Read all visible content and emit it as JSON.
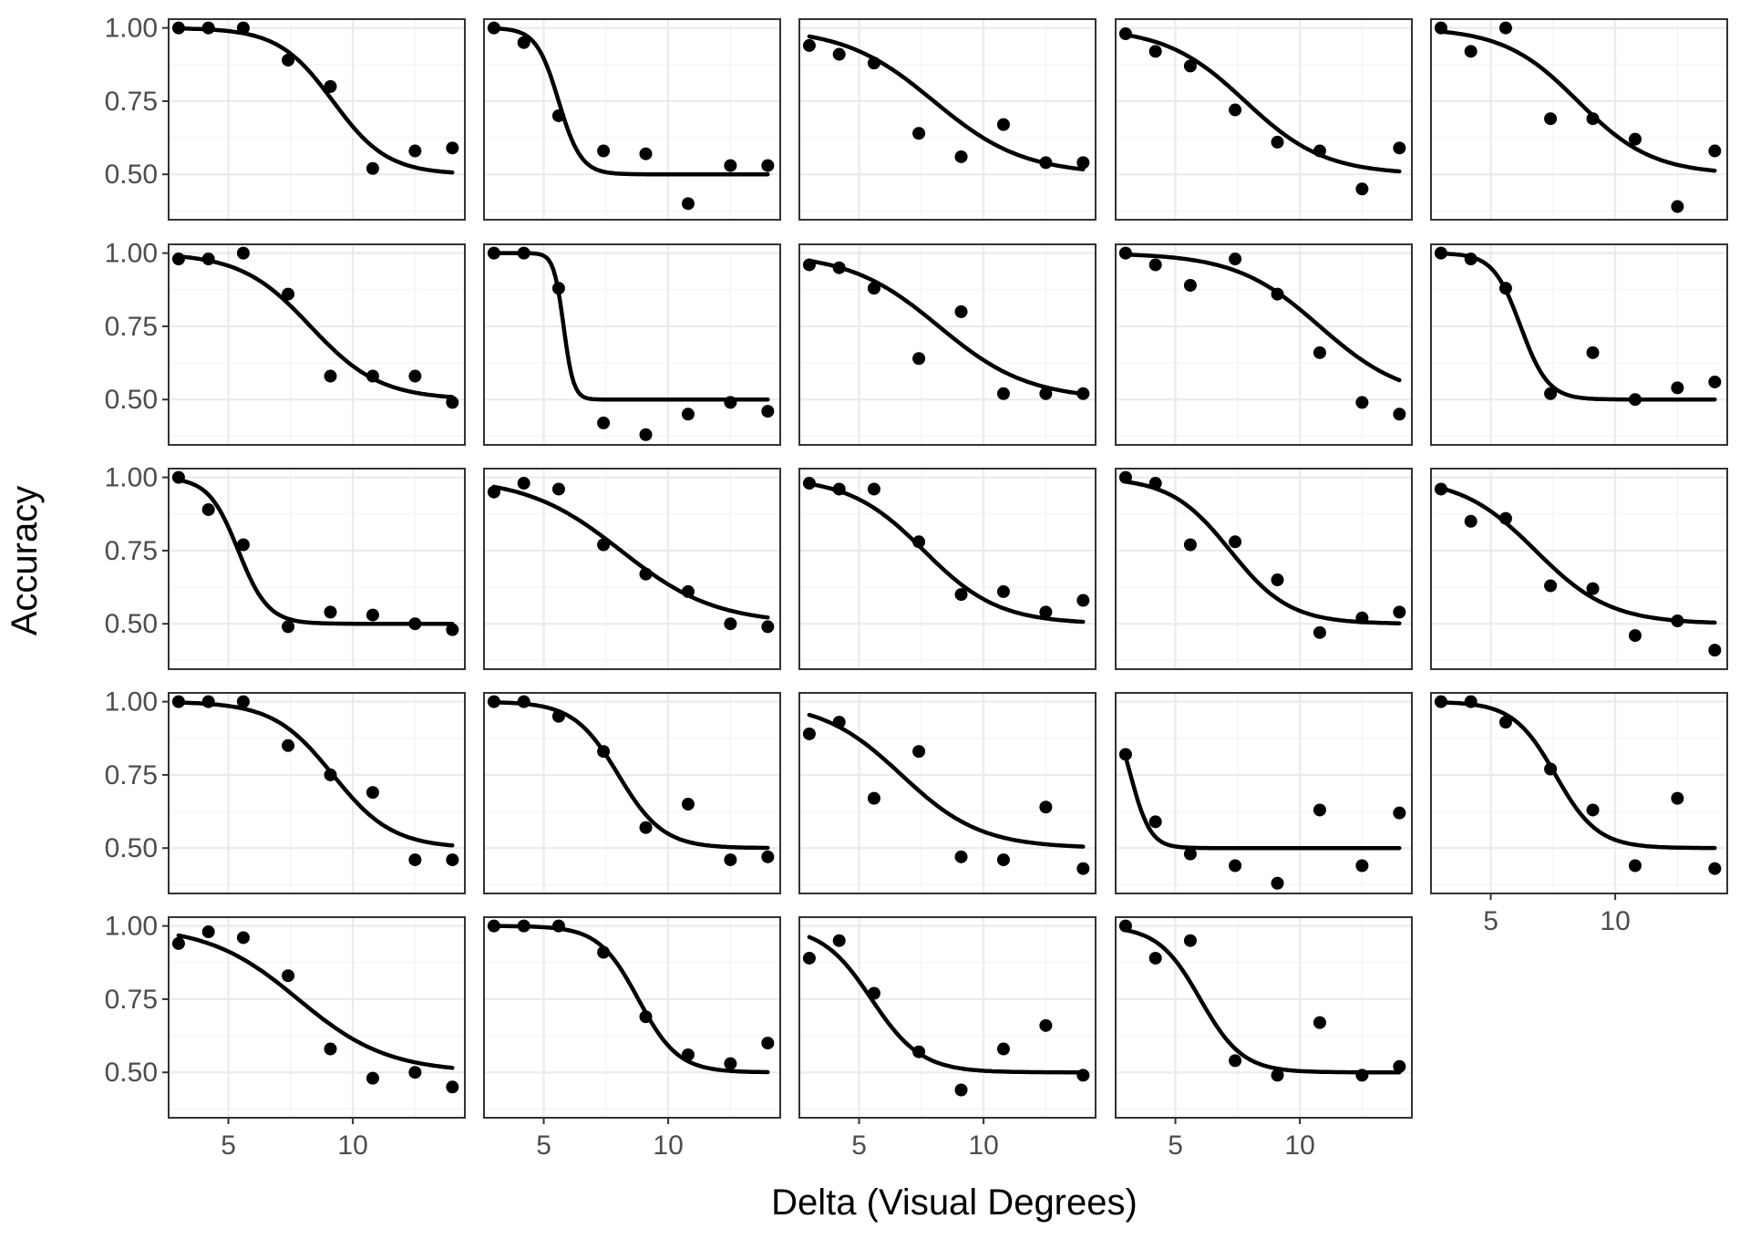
{
  "chart_data": {
    "type": "scatter",
    "layout": "facet-grid",
    "rows": 5,
    "cols": 5,
    "xlabel": "Delta (Visual Degrees)",
    "ylabel": "Accuracy",
    "xlim": [
      2.6,
      14.5
    ],
    "ylim": [
      0.345,
      1.03
    ],
    "x_ticks": [
      5,
      10
    ],
    "y_ticks": [
      0.5,
      0.75,
      1.0
    ],
    "y_tick_labels": [
      "0.50",
      "0.75",
      "1.00"
    ],
    "x": [
      3.0,
      4.2,
      5.6,
      7.4,
      9.1,
      10.8,
      12.5,
      14.0
    ],
    "grid": true,
    "point_color": "#000000",
    "curve_color": "#000000",
    "panels": [
      {
        "y": [
          1.0,
          1.0,
          1.0,
          0.89,
          0.8,
          0.52,
          0.58,
          0.59
        ],
        "fit": {
          "mu": 9.2,
          "s": 1.1
        }
      },
      {
        "y": [
          1.0,
          0.95,
          0.7,
          0.58,
          0.57,
          0.4,
          0.53,
          0.53
        ],
        "fit": {
          "mu": 5.6,
          "s": 0.45
        }
      },
      {
        "y": [
          0.94,
          0.91,
          0.88,
          0.64,
          0.56,
          0.67,
          0.54,
          0.54
        ],
        "fit": {
          "mu": 8.0,
          "s": 1.8
        }
      },
      {
        "y": [
          0.98,
          0.92,
          0.87,
          0.72,
          0.61,
          0.58,
          0.45,
          0.59
        ],
        "fit": {
          "mu": 7.8,
          "s": 1.6
        }
      },
      {
        "y": [
          1.0,
          0.92,
          1.0,
          0.69,
          0.69,
          0.62,
          0.39,
          0.58
        ],
        "fit": {
          "mu": 8.5,
          "s": 1.5
        }
      },
      {
        "y": [
          0.98,
          0.98,
          1.0,
          0.86,
          0.58,
          0.58,
          0.58,
          0.49
        ],
        "fit": {
          "mu": 8.3,
          "s": 1.4
        }
      },
      {
        "y": [
          1.0,
          1.0,
          0.88,
          0.42,
          0.38,
          0.45,
          0.49,
          0.46
        ],
        "fit": {
          "mu": 5.8,
          "s": 0.2
        }
      },
      {
        "y": [
          0.96,
          0.95,
          0.88,
          0.64,
          0.8,
          0.52,
          0.52,
          0.52
        ],
        "fit": {
          "mu": 8.2,
          "s": 1.8
        }
      },
      {
        "y": [
          1.0,
          0.96,
          0.89,
          0.98,
          0.86,
          0.66,
          0.49,
          0.45
        ],
        "fit": {
          "mu": 10.8,
          "s": 1.7
        }
      },
      {
        "y": [
          1.0,
          0.98,
          0.88,
          0.52,
          0.66,
          0.5,
          0.54,
          0.56
        ],
        "fit": {
          "mu": 6.2,
          "s": 0.55
        }
      },
      {
        "y": [
          1.0,
          0.89,
          0.77,
          0.49,
          0.54,
          0.53,
          0.5,
          0.48
        ],
        "fit": {
          "mu": 5.4,
          "s": 0.6
        }
      },
      {
        "y": [
          0.95,
          0.98,
          0.96,
          0.77,
          0.67,
          0.61,
          0.5,
          0.49
        ],
        "fit": {
          "mu": 8.1,
          "s": 1.9
        }
      },
      {
        "y": [
          0.98,
          0.96,
          0.96,
          0.78,
          0.6,
          0.61,
          0.54,
          0.58
        ],
        "fit": {
          "mu": 7.6,
          "s": 1.5
        }
      },
      {
        "y": [
          1.0,
          0.98,
          0.77,
          0.78,
          0.65,
          0.47,
          0.52,
          0.54
        ],
        "fit": {
          "mu": 7.2,
          "s": 1.2
        }
      },
      {
        "y": [
          0.96,
          0.85,
          0.86,
          0.63,
          0.62,
          0.46,
          0.51,
          0.41
        ],
        "fit": {
          "mu": 6.8,
          "s": 1.5
        }
      },
      {
        "y": [
          1.0,
          1.0,
          1.0,
          0.85,
          0.75,
          0.69,
          0.46,
          0.46
        ],
        "fit": {
          "mu": 9.2,
          "s": 1.2
        }
      },
      {
        "y": [
          1.0,
          1.0,
          0.95,
          0.83,
          0.57,
          0.65,
          0.46,
          0.47
        ],
        "fit": {
          "mu": 8.0,
          "s": 0.9
        }
      },
      {
        "y": [
          0.89,
          0.93,
          0.67,
          0.83,
          0.47,
          0.46,
          0.64,
          0.43
        ],
        "fit": {
          "mu": 6.7,
          "s": 1.6
        }
      },
      {
        "y": [
          0.82,
          0.59,
          0.48,
          0.44,
          0.38,
          0.63,
          0.44,
          0.62
        ],
        "fit": {
          "mu": 3.2,
          "s": 0.4
        }
      },
      {
        "y": [
          1.0,
          1.0,
          0.93,
          0.77,
          0.63,
          0.44,
          0.67,
          0.43
        ],
        "fit": {
          "mu": 7.6,
          "s": 0.85
        }
      },
      {
        "y": [
          0.94,
          0.98,
          0.96,
          0.83,
          0.58,
          0.48,
          0.5,
          0.45
        ],
        "fit": {
          "mu": 7.8,
          "s": 1.8
        }
      },
      {
        "y": [
          1.0,
          1.0,
          1.0,
          0.91,
          0.69,
          0.56,
          0.53,
          0.6
        ],
        "fit": {
          "mu": 8.8,
          "s": 0.8
        }
      },
      {
        "y": [
          0.89,
          0.95,
          0.77,
          0.57,
          0.44,
          0.58,
          0.66,
          0.49
        ],
        "fit": {
          "mu": 5.5,
          "s": 1.0
        }
      },
      {
        "y": [
          1.0,
          0.89,
          0.95,
          0.54,
          0.49,
          0.67,
          0.49,
          0.52
        ],
        "fit": {
          "mu": 6.0,
          "s": 0.85
        }
      }
    ]
  }
}
